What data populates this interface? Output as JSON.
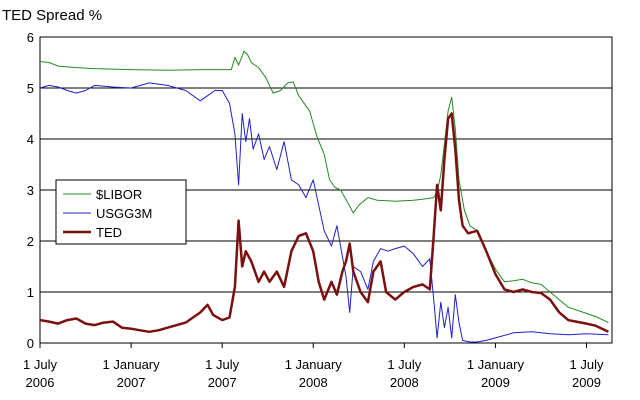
{
  "chart_data": {
    "type": "line",
    "title": "TED Spread %",
    "xlabel": "",
    "ylabel": "",
    "ylim": [
      0,
      6
    ],
    "yticks": [
      "0",
      "1",
      "2",
      "3",
      "4",
      "5",
      "6"
    ],
    "x_unit": "years",
    "xlim": [
      2006.5,
      2009.64
    ],
    "xticks": [
      {
        "x": 2006.5,
        "line1": "1 July",
        "line2": "2006"
      },
      {
        "x": 2007.0,
        "line1": "1 January",
        "line2": "2007"
      },
      {
        "x": 2007.5,
        "line1": "1 July",
        "line2": "2007"
      },
      {
        "x": 2008.0,
        "line1": "1 January",
        "line2": "2008"
      },
      {
        "x": 2008.5,
        "line1": "1 July",
        "line2": "2008"
      },
      {
        "x": 2009.0,
        "line1": "1 January",
        "line2": "2009"
      },
      {
        "x": 2009.5,
        "line1": "1 July",
        "line2": "2009"
      }
    ],
    "grid": "horizontal",
    "legend_position": "left-middle",
    "series": [
      {
        "name": "$LIBOR",
        "color": "#228B22",
        "width": 1,
        "points": [
          [
            2006.5,
            5.52
          ],
          [
            2006.55,
            5.5
          ],
          [
            2006.6,
            5.43
          ],
          [
            2006.7,
            5.4
          ],
          [
            2006.8,
            5.38
          ],
          [
            2006.9,
            5.37
          ],
          [
            2007.0,
            5.36
          ],
          [
            2007.2,
            5.35
          ],
          [
            2007.4,
            5.36
          ],
          [
            2007.55,
            5.36
          ],
          [
            2007.57,
            5.6
          ],
          [
            2007.59,
            5.45
          ],
          [
            2007.62,
            5.72
          ],
          [
            2007.64,
            5.65
          ],
          [
            2007.66,
            5.5
          ],
          [
            2007.7,
            5.4
          ],
          [
            2007.74,
            5.2
          ],
          [
            2007.78,
            4.9
          ],
          [
            2007.82,
            4.95
          ],
          [
            2007.86,
            5.1
          ],
          [
            2007.89,
            5.12
          ],
          [
            2007.92,
            4.85
          ],
          [
            2007.95,
            4.7
          ],
          [
            2007.98,
            4.55
          ],
          [
            2008.02,
            4.05
          ],
          [
            2008.06,
            3.7
          ],
          [
            2008.09,
            3.2
          ],
          [
            2008.12,
            3.05
          ],
          [
            2008.15,
            3.0
          ],
          [
            2008.19,
            2.75
          ],
          [
            2008.22,
            2.55
          ],
          [
            2008.25,
            2.7
          ],
          [
            2008.3,
            2.85
          ],
          [
            2008.35,
            2.8
          ],
          [
            2008.45,
            2.78
          ],
          [
            2008.55,
            2.8
          ],
          [
            2008.6,
            2.82
          ],
          [
            2008.66,
            2.85
          ],
          [
            2008.68,
            2.95
          ],
          [
            2008.7,
            3.3
          ],
          [
            2008.72,
            3.9
          ],
          [
            2008.74,
            4.55
          ],
          [
            2008.76,
            4.82
          ],
          [
            2008.78,
            4.2
          ],
          [
            2008.8,
            3.2
          ],
          [
            2008.83,
            2.6
          ],
          [
            2008.86,
            2.3
          ],
          [
            2008.9,
            2.2
          ],
          [
            2008.95,
            1.8
          ],
          [
            2009.0,
            1.45
          ],
          [
            2009.05,
            1.2
          ],
          [
            2009.1,
            1.22
          ],
          [
            2009.15,
            1.25
          ],
          [
            2009.2,
            1.18
          ],
          [
            2009.25,
            1.15
          ],
          [
            2009.3,
            1.0
          ],
          [
            2009.35,
            0.85
          ],
          [
            2009.4,
            0.7
          ],
          [
            2009.5,
            0.58
          ],
          [
            2009.55,
            0.52
          ],
          [
            2009.62,
            0.4
          ]
        ]
      },
      {
        "name": "USGG3M",
        "color": "#2020CC",
        "width": 1,
        "points": [
          [
            2006.5,
            5.0
          ],
          [
            2006.55,
            5.05
          ],
          [
            2006.6,
            5.02
          ],
          [
            2006.65,
            4.95
          ],
          [
            2006.7,
            4.9
          ],
          [
            2006.75,
            4.95
          ],
          [
            2006.8,
            5.05
          ],
          [
            2006.9,
            5.02
          ],
          [
            2007.0,
            5.0
          ],
          [
            2007.1,
            5.1
          ],
          [
            2007.2,
            5.05
          ],
          [
            2007.3,
            4.95
          ],
          [
            2007.38,
            4.75
          ],
          [
            2007.42,
            4.85
          ],
          [
            2007.46,
            4.95
          ],
          [
            2007.5,
            4.95
          ],
          [
            2007.54,
            4.7
          ],
          [
            2007.57,
            4.1
          ],
          [
            2007.59,
            3.1
          ],
          [
            2007.61,
            4.5
          ],
          [
            2007.63,
            3.95
          ],
          [
            2007.65,
            4.4
          ],
          [
            2007.67,
            3.8
          ],
          [
            2007.7,
            4.1
          ],
          [
            2007.73,
            3.6
          ],
          [
            2007.76,
            3.85
          ],
          [
            2007.8,
            3.4
          ],
          [
            2007.84,
            3.95
          ],
          [
            2007.88,
            3.2
          ],
          [
            2007.92,
            3.1
          ],
          [
            2007.96,
            2.85
          ],
          [
            2008.0,
            3.2
          ],
          [
            2008.03,
            2.7
          ],
          [
            2008.06,
            2.2
          ],
          [
            2008.1,
            1.9
          ],
          [
            2008.13,
            2.3
          ],
          [
            2008.16,
            1.7
          ],
          [
            2008.18,
            1.3
          ],
          [
            2008.2,
            0.6
          ],
          [
            2008.22,
            1.5
          ],
          [
            2008.26,
            1.4
          ],
          [
            2008.3,
            1.05
          ],
          [
            2008.33,
            1.6
          ],
          [
            2008.37,
            1.85
          ],
          [
            2008.41,
            1.8
          ],
          [
            2008.45,
            1.85
          ],
          [
            2008.5,
            1.9
          ],
          [
            2008.55,
            1.75
          ],
          [
            2008.6,
            1.5
          ],
          [
            2008.64,
            1.65
          ],
          [
            2008.66,
            0.9
          ],
          [
            2008.68,
            0.1
          ],
          [
            2008.7,
            0.8
          ],
          [
            2008.72,
            0.3
          ],
          [
            2008.74,
            0.7
          ],
          [
            2008.76,
            0.1
          ],
          [
            2008.78,
            0.95
          ],
          [
            2008.8,
            0.4
          ],
          [
            2008.82,
            0.05
          ],
          [
            2008.86,
            0.02
          ],
          [
            2008.9,
            0.02
          ],
          [
            2008.95,
            0.05
          ],
          [
            2009.0,
            0.1
          ],
          [
            2009.1,
            0.2
          ],
          [
            2009.2,
            0.22
          ],
          [
            2009.3,
            0.18
          ],
          [
            2009.4,
            0.16
          ],
          [
            2009.5,
            0.18
          ],
          [
            2009.62,
            0.16
          ]
        ]
      },
      {
        "name": "TED",
        "color": "#7B1010",
        "width": 2.5,
        "points": [
          [
            2006.5,
            0.45
          ],
          [
            2006.55,
            0.42
          ],
          [
            2006.6,
            0.38
          ],
          [
            2006.65,
            0.45
          ],
          [
            2006.7,
            0.48
          ],
          [
            2006.75,
            0.38
          ],
          [
            2006.8,
            0.35
          ],
          [
            2006.85,
            0.4
          ],
          [
            2006.9,
            0.42
          ],
          [
            2006.95,
            0.3
          ],
          [
            2007.0,
            0.28
          ],
          [
            2007.05,
            0.25
          ],
          [
            2007.1,
            0.22
          ],
          [
            2007.15,
            0.25
          ],
          [
            2007.2,
            0.3
          ],
          [
            2007.3,
            0.4
          ],
          [
            2007.38,
            0.6
          ],
          [
            2007.42,
            0.75
          ],
          [
            2007.45,
            0.55
          ],
          [
            2007.5,
            0.45
          ],
          [
            2007.54,
            0.5
          ],
          [
            2007.57,
            1.1
          ],
          [
            2007.59,
            2.4
          ],
          [
            2007.61,
            1.5
          ],
          [
            2007.63,
            1.8
          ],
          [
            2007.66,
            1.6
          ],
          [
            2007.7,
            1.2
          ],
          [
            2007.73,
            1.4
          ],
          [
            2007.76,
            1.2
          ],
          [
            2007.8,
            1.4
          ],
          [
            2007.84,
            1.1
          ],
          [
            2007.88,
            1.8
          ],
          [
            2007.92,
            2.1
          ],
          [
            2007.96,
            2.15
          ],
          [
            2008.0,
            1.8
          ],
          [
            2008.03,
            1.2
          ],
          [
            2008.06,
            0.85
          ],
          [
            2008.1,
            1.2
          ],
          [
            2008.13,
            0.95
          ],
          [
            2008.16,
            1.4
          ],
          [
            2008.18,
            1.6
          ],
          [
            2008.2,
            1.95
          ],
          [
            2008.22,
            1.4
          ],
          [
            2008.26,
            1.0
          ],
          [
            2008.3,
            0.8
          ],
          [
            2008.33,
            1.4
          ],
          [
            2008.37,
            1.6
          ],
          [
            2008.4,
            1.0
          ],
          [
            2008.45,
            0.85
          ],
          [
            2008.5,
            1.0
          ],
          [
            2008.55,
            1.1
          ],
          [
            2008.6,
            1.15
          ],
          [
            2008.64,
            1.05
          ],
          [
            2008.66,
            2.05
          ],
          [
            2008.68,
            3.1
          ],
          [
            2008.7,
            2.6
          ],
          [
            2008.72,
            3.6
          ],
          [
            2008.74,
            4.4
          ],
          [
            2008.76,
            4.5
          ],
          [
            2008.78,
            3.8
          ],
          [
            2008.8,
            2.8
          ],
          [
            2008.82,
            2.3
          ],
          [
            2008.85,
            2.15
          ],
          [
            2008.9,
            2.2
          ],
          [
            2008.95,
            1.8
          ],
          [
            2009.0,
            1.35
          ],
          [
            2009.05,
            1.05
          ],
          [
            2009.1,
            1.0
          ],
          [
            2009.15,
            1.05
          ],
          [
            2009.2,
            1.0
          ],
          [
            2009.25,
            0.98
          ],
          [
            2009.3,
            0.85
          ],
          [
            2009.35,
            0.6
          ],
          [
            2009.4,
            0.45
          ],
          [
            2009.5,
            0.38
          ],
          [
            2009.55,
            0.34
          ],
          [
            2009.62,
            0.22
          ]
        ]
      }
    ]
  }
}
